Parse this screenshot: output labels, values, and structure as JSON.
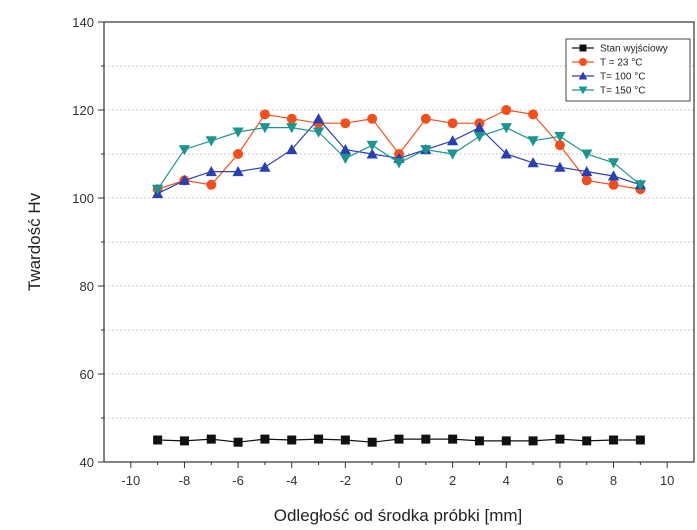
{
  "chart_data": {
    "type": "line",
    "xlabel": "Odległość od środka próbki [mm]",
    "ylabel": "Twardość Hv",
    "xlim": [
      -11,
      11
    ],
    "ylim": [
      40,
      140
    ],
    "xticks": [
      -10,
      -8,
      -6,
      -4,
      -2,
      0,
      2,
      4,
      6,
      8,
      10
    ],
    "yticks": [
      40,
      60,
      80,
      100,
      120,
      140
    ],
    "grid": "horizontal dotted",
    "legend_position": "top-right",
    "x": [
      -9,
      -8,
      -7,
      -6,
      -5,
      -4,
      -3,
      -2,
      -1,
      0,
      1,
      2,
      3,
      4,
      5,
      6,
      7,
      8,
      9
    ],
    "series": [
      {
        "name": "Stan wyjściowy",
        "color": "#111111",
        "marker": "square",
        "values": [
          45,
          44.8,
          45.2,
          44.5,
          45.2,
          45.0,
          45.2,
          45.0,
          44.5,
          45.2,
          45.2,
          45.2,
          44.8,
          44.8,
          44.8,
          45.2,
          44.8,
          45.0,
          45.0
        ]
      },
      {
        "name": "T = 23 °C",
        "color": "#f0501e",
        "marker": "circle",
        "values": [
          102,
          104,
          103,
          110,
          119,
          118,
          117,
          117,
          118,
          110,
          118,
          117,
          117,
          120,
          119,
          112,
          104,
          103,
          102
        ]
      },
      {
        "name": "T= 100 °C",
        "color": "#2a3fb0",
        "marker": "triangle-up",
        "values": [
          101,
          104,
          106,
          106,
          107,
          111,
          118,
          111,
          110,
          109,
          111,
          113,
          116,
          110,
          108,
          107,
          106,
          105,
          103
        ]
      },
      {
        "name": "T= 150 °C",
        "color": "#1e9490",
        "marker": "triangle-down",
        "values": [
          102,
          111,
          113,
          115,
          116,
          116,
          115,
          109,
          112,
          108,
          111,
          110,
          114,
          116,
          113,
          114,
          110,
          108,
          103
        ]
      }
    ]
  }
}
